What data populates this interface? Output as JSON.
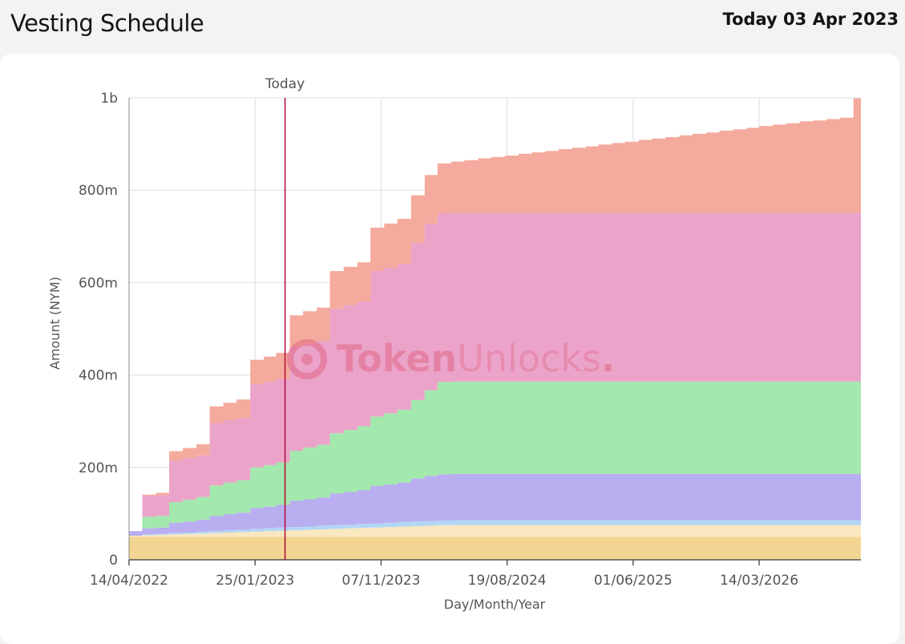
{
  "header": {
    "title": "Vesting Schedule",
    "today": "Today 03 Apr 2023"
  },
  "watermark": {
    "text_bold": "Token",
    "text_light": "Unlocks",
    "dot": ".",
    "color": "#e0627f"
  },
  "chart_data": {
    "type": "area",
    "stacked": true,
    "step": true,
    "xlabel": "Day/Month/Year",
    "ylabel": "Amount (NYM)",
    "ylim": [
      0,
      1000000000
    ],
    "xlim": [
      "2022-04-14",
      "2026-10-31"
    ],
    "x_tick_labels": [
      "14/04/2022",
      "25/01/2023",
      "07/11/2023",
      "19/08/2024",
      "01/06/2025",
      "14/03/2026"
    ],
    "y_tick_values": [
      0,
      200000000,
      400000000,
      600000000,
      800000000,
      1000000000
    ],
    "y_tick_labels": [
      "0",
      "200m",
      "400m",
      "600m",
      "800m",
      "1b"
    ],
    "grid": true,
    "legend": "none",
    "today_marker": {
      "date": "2023-04-03",
      "label": "Today",
      "color": "#b5123e"
    },
    "x": [
      "2022-04-14",
      "2022-05-14",
      "2022-06-14",
      "2022-07-14",
      "2022-08-14",
      "2022-09-14",
      "2022-10-14",
      "2022-11-14",
      "2022-12-14",
      "2023-01-14",
      "2023-02-14",
      "2023-03-14",
      "2023-04-14",
      "2023-05-14",
      "2023-06-14",
      "2023-07-14",
      "2023-08-14",
      "2023-09-14",
      "2023-10-14",
      "2023-11-14",
      "2023-12-14",
      "2024-01-14",
      "2024-02-14",
      "2024-03-14",
      "2024-04-14",
      "2024-05-14",
      "2024-06-14",
      "2024-07-14",
      "2024-08-14",
      "2024-09-14",
      "2024-10-14",
      "2024-11-14",
      "2024-12-14",
      "2025-01-14",
      "2025-02-14",
      "2025-03-14",
      "2025-04-14",
      "2025-05-14",
      "2025-06-14",
      "2025-07-14",
      "2025-08-14",
      "2025-09-14",
      "2025-10-14",
      "2025-11-14",
      "2025-12-14",
      "2026-01-14",
      "2026-02-14",
      "2026-03-14",
      "2026-04-14",
      "2026-05-14",
      "2026-06-14",
      "2026-07-14",
      "2026-08-14",
      "2026-09-14",
      "2026-10-14",
      "2026-10-31"
    ],
    "series": [
      {
        "color": "#f2d592",
        "values": [
          50000000,
          50000000,
          50000000,
          50000000,
          50000000,
          50000000,
          50000000,
          50000000,
          50000000,
          50000000,
          50000000,
          50000000,
          50000000,
          50000000,
          50000000,
          50000000,
          50000000,
          50000000,
          50000000,
          50000000,
          50000000,
          50000000,
          50000000,
          50000000,
          50000000,
          50000000,
          50000000,
          50000000,
          50000000,
          50000000,
          50000000,
          50000000,
          50000000,
          50000000,
          50000000,
          50000000,
          50000000,
          50000000,
          50000000,
          50000000,
          50000000,
          50000000,
          50000000,
          50000000,
          50000000,
          50000000,
          50000000,
          50000000,
          50000000,
          50000000,
          50000000,
          50000000,
          50000000,
          50000000,
          50000000,
          50000000
        ]
      },
      {
        "color": "#f8e7bf",
        "values": [
          2000000,
          3000000,
          4000000,
          5000000,
          6000000,
          7000000,
          8000000,
          9000000,
          10000000,
          11000000,
          12000000,
          13000000,
          14000000,
          15000000,
          16000000,
          17000000,
          18000000,
          19000000,
          20000000,
          21000000,
          22000000,
          23000000,
          24000000,
          25000000,
          25000000,
          25000000,
          25000000,
          25000000,
          25000000,
          25000000,
          25000000,
          25000000,
          25000000,
          25000000,
          25000000,
          25000000,
          25000000,
          25000000,
          25000000,
          25000000,
          25000000,
          25000000,
          25000000,
          25000000,
          25000000,
          25000000,
          25000000,
          25000000,
          25000000,
          25000000,
          25000000,
          25000000,
          25000000,
          25000000,
          25000000,
          25000000
        ]
      },
      {
        "color": "#b2d6f5",
        "values": [
          0,
          2000000,
          2000000,
          3000000,
          3000000,
          4000000,
          4000000,
          5000000,
          5000000,
          6000000,
          6000000,
          7000000,
          7000000,
          7000000,
          8000000,
          8000000,
          8000000,
          9000000,
          9000000,
          9000000,
          10000000,
          10000000,
          10000000,
          10000000,
          11000000,
          11000000,
          11000000,
          11000000,
          11000000,
          11000000,
          11000000,
          11000000,
          11000000,
          11000000,
          11000000,
          11000000,
          11000000,
          11000000,
          11000000,
          11000000,
          11000000,
          11000000,
          11000000,
          11000000,
          11000000,
          11000000,
          11000000,
          11000000,
          11000000,
          11000000,
          11000000,
          11000000,
          11000000,
          11000000,
          11000000,
          11000000
        ]
      },
      {
        "color": "#b9aef0",
        "values": [
          10000000,
          13000000,
          14000000,
          22000000,
          24000000,
          26000000,
          33000000,
          35000000,
          37000000,
          45000000,
          47000000,
          49000000,
          57000000,
          59000000,
          61000000,
          69000000,
          71000000,
          73000000,
          81000000,
          83000000,
          85000000,
          93000000,
          98000000,
          100000000,
          100000000,
          100000000,
          100000000,
          100000000,
          100000000,
          100000000,
          100000000,
          100000000,
          100000000,
          100000000,
          100000000,
          100000000,
          100000000,
          100000000,
          100000000,
          100000000,
          100000000,
          100000000,
          100000000,
          100000000,
          100000000,
          100000000,
          100000000,
          100000000,
          100000000,
          100000000,
          100000000,
          100000000,
          100000000,
          100000000,
          100000000,
          100000000
        ]
      },
      {
        "color": "#a3e8ad",
        "values": [
          0,
          25000000,
          25000000,
          45000000,
          47000000,
          49000000,
          66000000,
          68000000,
          70000000,
          88000000,
          90000000,
          92000000,
          108000000,
          112000000,
          114000000,
          130000000,
          134000000,
          138000000,
          150000000,
          154000000,
          158000000,
          170000000,
          185000000,
          200000000,
          200000000,
          200000000,
          200000000,
          200000000,
          200000000,
          200000000,
          200000000,
          200000000,
          200000000,
          200000000,
          200000000,
          200000000,
          200000000,
          200000000,
          200000000,
          200000000,
          200000000,
          200000000,
          200000000,
          200000000,
          200000000,
          200000000,
          200000000,
          200000000,
          200000000,
          200000000,
          200000000,
          200000000,
          200000000,
          200000000,
          200000000,
          200000000
        ]
      },
      {
        "color": "#eba3c9",
        "values": [
          0,
          45000000,
          45000000,
          90000000,
          90000000,
          90000000,
          135000000,
          135000000,
          135000000,
          180000000,
          180000000,
          180000000,
          225000000,
          225000000,
          225000000,
          270000000,
          270000000,
          270000000,
          315000000,
          315000000,
          315000000,
          340000000,
          360000000,
          365000000,
          365000000,
          365000000,
          365000000,
          365000000,
          365000000,
          365000000,
          365000000,
          365000000,
          365000000,
          365000000,
          365000000,
          365000000,
          365000000,
          365000000,
          365000000,
          365000000,
          365000000,
          365000000,
          365000000,
          365000000,
          365000000,
          365000000,
          365000000,
          365000000,
          365000000,
          365000000,
          365000000,
          365000000,
          365000000,
          365000000,
          365000000,
          365000000
        ]
      },
      {
        "color": "#f4aa9c",
        "values": [
          0,
          3000000,
          5000000,
          20000000,
          22000000,
          24000000,
          36000000,
          38000000,
          40000000,
          53000000,
          55000000,
          57000000,
          68000000,
          70000000,
          72000000,
          81000000,
          83000000,
          85000000,
          94000000,
          96000000,
          98000000,
          103000000,
          106000000,
          108000000,
          111000000,
          114000000,
          118000000,
          121000000,
          124000000,
          128000000,
          131000000,
          134000000,
          138000000,
          141000000,
          144000000,
          148000000,
          151000000,
          154000000,
          158000000,
          161000000,
          164000000,
          168000000,
          171000000,
          174000000,
          178000000,
          181000000,
          184000000,
          188000000,
          191000000,
          194000000,
          198000000,
          200000000,
          203000000,
          206000000,
          248000000,
          249000000
        ]
      }
    ]
  }
}
